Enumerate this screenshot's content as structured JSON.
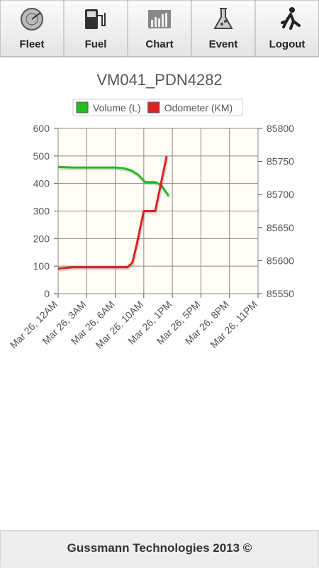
{
  "nav": {
    "tabs": [
      {
        "label": "Fleet"
      },
      {
        "label": "Fuel"
      },
      {
        "label": "Chart"
      },
      {
        "label": "Event"
      },
      {
        "label": "Logout"
      }
    ]
  },
  "chart_data": {
    "type": "line",
    "title": "VM041_PDN4282",
    "xlim": [
      0,
      7
    ],
    "xticks": [
      {
        "value": 0,
        "label": "Mar 26, 12AM"
      },
      {
        "value": 1,
        "label": "Mar 26, 3AM"
      },
      {
        "value": 2,
        "label": "Mar 26, 6AM"
      },
      {
        "value": 3,
        "label": "Mar 26, 10AM"
      },
      {
        "value": 4,
        "label": "Mar 26, 1PM"
      },
      {
        "value": 5,
        "label": "Mar 26, 5PM"
      },
      {
        "value": 6,
        "label": "Mar 26, 8PM"
      },
      {
        "value": 7,
        "label": "Mar 26, 11PM"
      }
    ],
    "ylim": [
      0,
      600
    ],
    "yticks": [
      0,
      100,
      200,
      300,
      400,
      500,
      600
    ],
    "y2lim": [
      85550,
      85800
    ],
    "y2ticks": [
      85550,
      85600,
      85650,
      85700,
      85750,
      85800
    ],
    "grid": true,
    "series": [
      {
        "name": "Volume (L)",
        "color": "#22bb22",
        "x": [
          0,
          0.5,
          1,
          1.5,
          2,
          2.3,
          2.55,
          2.8,
          3.05,
          3.4,
          3.6,
          3.87
        ],
        "values": [
          460,
          458,
          458,
          458,
          458,
          455,
          448,
          432,
          405,
          405,
          395,
          355
        ]
      },
      {
        "name": "Odometer (KM)",
        "color": "#dd2222",
        "axis": "y2",
        "x": [
          0,
          0.5,
          1,
          1.5,
          2,
          2.43,
          2.6,
          2.75,
          3.0,
          3.4,
          3.8
        ],
        "values": [
          85588,
          85590,
          85590,
          85590,
          85590,
          85590,
          85597,
          85624,
          85675,
          85675,
          85758
        ]
      }
    ]
  },
  "footer": {
    "text": "Gussmann Technologies 2013 ©"
  }
}
